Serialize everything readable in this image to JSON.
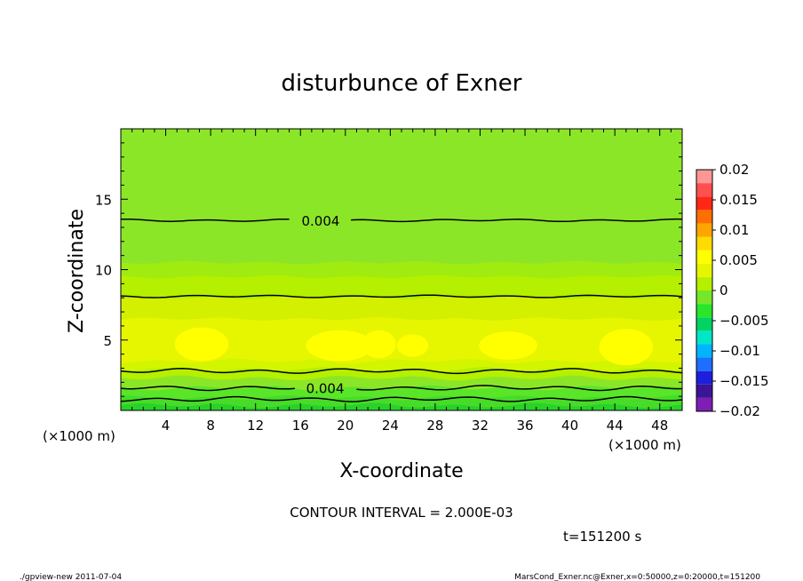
{
  "chart_data": {
    "type": "heatmap",
    "title": "disturbunce of Exner",
    "xlabel": "X-coordinate",
    "ylabel": "Z-coordinate",
    "x_unit": "(×1000 m)",
    "y_unit": "(×1000 m)",
    "xlim": [
      0,
      50
    ],
    "ylim": [
      0,
      20
    ],
    "x_ticks": [
      4,
      8,
      12,
      16,
      20,
      24,
      28,
      32,
      36,
      40,
      44,
      48
    ],
    "y_ticks": [
      5,
      10,
      15
    ],
    "colorbar": {
      "levels": [
        -0.02,
        -0.015,
        -0.01,
        -0.005,
        0,
        0.005,
        0.01,
        0.015,
        0.02
      ],
      "labels": [
        "0.02",
        "0.015",
        "0.01",
        "0.005",
        "0",
        "−0.005",
        "−0.01",
        "−0.015",
        "−0.02"
      ],
      "colors": [
        "#7d1fb4",
        "#3c1496",
        "#1e1edc",
        "#1e6eff",
        "#00b4ff",
        "#00e6c8",
        "#00d264",
        "#28e628",
        "#78e628",
        "#b4f000",
        "#e6f500",
        "#ffff00",
        "#ffdc00",
        "#ffa500",
        "#ff6e00",
        "#ff2814",
        "#ff5050",
        "#ff9696"
      ]
    },
    "bands": [
      {
        "z_top": 0.35,
        "value": 0.0,
        "color": "#28d228"
      },
      {
        "z_top": 0.9,
        "value": 0.001,
        "color": "#46dc28"
      },
      {
        "z_top": 1.6,
        "value": 0.002,
        "color": "#5ae628"
      },
      {
        "z_top": 2.3,
        "value": 0.003,
        "color": "#8ce628"
      },
      {
        "z_top": 2.9,
        "value": 0.0035,
        "color": "#b4f000"
      },
      {
        "z_top": 3.5,
        "value": 0.0045,
        "color": "#d2f500"
      },
      {
        "z_top": 6.5,
        "value": 0.0055,
        "color": "#e6f500"
      },
      {
        "z_top": 8.0,
        "value": 0.005,
        "color": "#d2f000"
      },
      {
        "z_top": 9.5,
        "value": 0.0045,
        "color": "#b4f000"
      },
      {
        "z_top": 10.5,
        "value": 0.0045,
        "color": "#a0eb10"
      },
      {
        "z_top": 20.0,
        "value": 0.003,
        "color": "#8ce628"
      }
    ],
    "yellow_blobs": [
      {
        "x": 7.2,
        "z": 4.7,
        "rx": 2.4,
        "rz": 1.2
      },
      {
        "x": 19.5,
        "z": 4.6,
        "rx": 3.0,
        "rz": 1.1
      },
      {
        "x": 23.0,
        "z": 4.7,
        "rx": 1.5,
        "rz": 1.0
      },
      {
        "x": 26.0,
        "z": 4.6,
        "rx": 1.4,
        "rz": 0.8
      },
      {
        "x": 34.5,
        "z": 4.6,
        "rx": 2.6,
        "rz": 1.0
      },
      {
        "x": 45.0,
        "z": 4.5,
        "rx": 2.4,
        "rz": 1.3
      }
    ],
    "contours": [
      {
        "z": 13.5,
        "label": "0.004",
        "label_x": 17.8
      },
      {
        "z": 8.1,
        "label": "",
        "label_x": null
      },
      {
        "z": 2.8,
        "label": "",
        "label_x": null
      },
      {
        "z": 1.6,
        "label": "0.004",
        "label_x": 18.2
      },
      {
        "z": 0.8,
        "label": "",
        "label_x": null
      }
    ]
  },
  "footer": {
    "contour_interval": "CONTOUR INTERVAL = 2.000E-03",
    "time": "t=151200 s",
    "left_note": "./gpview-new  2011-07-04",
    "right_note": "MarsCond_Exner.nc@Exner,x=0:50000,z=0:20000,t=151200"
  }
}
